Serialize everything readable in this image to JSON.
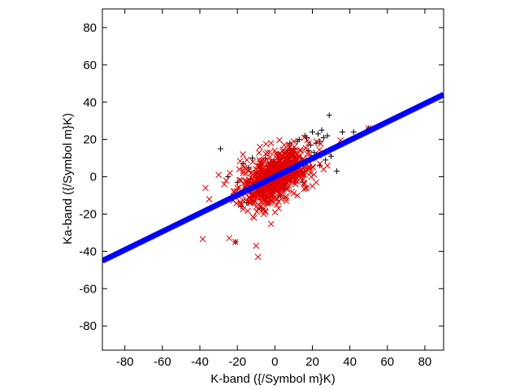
{
  "chart_data": {
    "type": "scatter",
    "title": "",
    "xlabel": "K-band ({/Symbol m}K)",
    "ylabel": "Ka-band ({/Symbol m}K)",
    "xlim": [
      -92,
      90
    ],
    "ylim": [
      -93,
      90
    ],
    "xticks": [
      -80,
      -60,
      -40,
      -20,
      0,
      20,
      40,
      60,
      80
    ],
    "yticks": [
      -80,
      -60,
      -40,
      -20,
      0,
      20,
      40,
      60,
      80
    ],
    "grid": false,
    "legend": "none",
    "colors": {
      "black_series": "#000000",
      "red_series": "#e00000",
      "fit_line": "#0000ff"
    },
    "series": [
      {
        "marker": "plus",
        "color": "#000000",
        "points": [
          [
            -29,
            15
          ],
          [
            -21,
            -35
          ],
          [
            -17,
            7
          ],
          [
            -14,
            5
          ],
          [
            -12,
            10
          ],
          [
            -11,
            -10
          ],
          [
            -10,
            2
          ],
          [
            -8,
            6
          ],
          [
            -6,
            -5
          ],
          [
            -5,
            10
          ],
          [
            -3,
            4
          ],
          [
            -2,
            -8
          ],
          [
            0,
            8
          ],
          [
            2,
            12
          ],
          [
            4,
            6
          ],
          [
            5,
            -6
          ],
          [
            7,
            14
          ],
          [
            8,
            18
          ],
          [
            9,
            2
          ],
          [
            10,
            15
          ],
          [
            12,
            19
          ],
          [
            13,
            20
          ],
          [
            14,
            10
          ],
          [
            15,
            -3
          ],
          [
            16,
            22
          ],
          [
            17,
            21
          ],
          [
            18,
            14
          ],
          [
            19,
            17
          ],
          [
            20,
            24
          ],
          [
            21,
            13
          ],
          [
            22,
            18
          ],
          [
            23,
            23
          ],
          [
            24,
            19
          ],
          [
            25,
            25
          ],
          [
            26,
            21
          ],
          [
            27,
            9
          ],
          [
            28,
            22
          ],
          [
            29,
            33
          ],
          [
            30,
            11
          ],
          [
            33,
            3
          ],
          [
            36,
            24
          ],
          [
            42,
            24
          ],
          [
            50,
            26
          ],
          [
            -18,
            -16
          ],
          [
            -15,
            -14
          ],
          [
            -9,
            -8
          ],
          [
            -7,
            -17
          ],
          [
            -4,
            -14
          ],
          [
            3,
            -10
          ],
          [
            6,
            -4
          ],
          [
            -25,
            0
          ],
          [
            -20,
            -3
          ],
          [
            -13,
            -1
          ],
          [
            11,
            8
          ],
          [
            16,
            3
          ],
          [
            24,
            6
          ]
        ]
      },
      {
        "marker": "x",
        "color": "#e00000",
        "points": [
          [
            -37,
            -6
          ],
          [
            -35,
            -12
          ],
          [
            -30,
            1
          ],
          [
            -27,
            -4
          ],
          [
            -24,
            2
          ],
          [
            -21,
            -35
          ],
          [
            -20,
            -6
          ],
          [
            -19,
            4
          ],
          [
            -18,
            -15
          ],
          [
            -16,
            -9
          ],
          [
            -15,
            9
          ],
          [
            -13,
            -12
          ],
          [
            -12,
            -1
          ],
          [
            -11,
            -22
          ],
          [
            -10,
            -37
          ],
          [
            -9,
            -43
          ],
          [
            -8,
            16
          ],
          [
            -7,
            -11
          ],
          [
            -6,
            8
          ],
          [
            -5,
            -19
          ],
          [
            -4,
            13
          ],
          [
            -3,
            -7
          ],
          [
            -2,
            18
          ],
          [
            -1,
            -3
          ],
          [
            0,
            14
          ],
          [
            1,
            -15
          ],
          [
            2,
            7
          ],
          [
            3,
            -10
          ],
          [
            4,
            11
          ],
          [
            5,
            -5
          ],
          [
            6,
            9
          ],
          [
            7,
            -2
          ],
          [
            8,
            5
          ],
          [
            9,
            -8
          ],
          [
            10,
            12
          ],
          [
            11,
            -4
          ],
          [
            12,
            6
          ],
          [
            13,
            0
          ],
          [
            14,
            3
          ],
          [
            15,
            -1
          ],
          [
            16,
            8
          ],
          [
            17,
            -6
          ],
          [
            18,
            4
          ],
          [
            19,
            2
          ],
          [
            20,
            10
          ],
          [
            22,
            -3
          ],
          [
            24,
            7
          ],
          [
            26,
            4
          ],
          [
            18,
            18
          ],
          [
            10,
            19
          ],
          [
            2,
            -17
          ],
          [
            -4,
            2
          ],
          [
            -8,
            -5
          ],
          [
            6,
            -13
          ],
          [
            14,
            14
          ],
          [
            -14,
            3
          ],
          [
            -22,
            -8
          ],
          [
            -26,
            -2
          ],
          [
            20,
            -5
          ],
          [
            28,
            6
          ],
          [
            -6,
            -20
          ],
          [
            5,
            17
          ],
          [
            -17,
            12
          ],
          [
            12,
            -10
          ],
          [
            50,
            26
          ]
        ]
      },
      {
        "type": "line",
        "color": "#0000ff",
        "slope": 0.49,
        "intercept": 0.0,
        "x_range": [
          -92,
          90
        ]
      }
    ]
  }
}
